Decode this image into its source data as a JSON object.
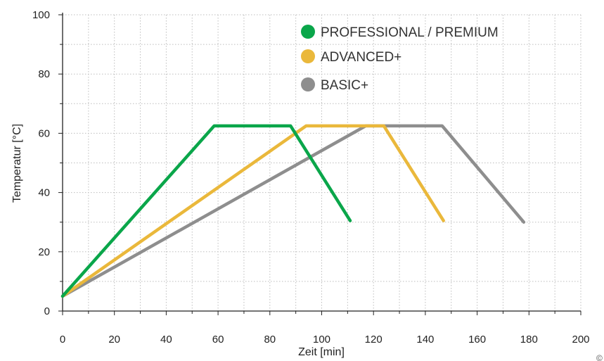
{
  "chart_data": {
    "type": "line",
    "xlabel": "Zeit [min]",
    "ylabel": "Temperatur [°C]",
    "xlim": [
      0,
      200
    ],
    "ylim": [
      0,
      100
    ],
    "x_ticks": [
      "0",
      "20",
      "40",
      "60",
      "80",
      "100",
      "120",
      "140",
      "160",
      "180",
      "200"
    ],
    "y_ticks": [
      "0",
      "20",
      "40",
      "60",
      "80",
      "100"
    ],
    "grid": true,
    "legend_position": "top-right",
    "series": [
      {
        "name": "PROFESSIONAL / PREMIUM",
        "color": "#0aa64a",
        "points": [
          [
            0,
            5
          ],
          [
            58.5,
            62.5
          ],
          [
            88,
            62.5
          ],
          [
            111,
            30.5
          ]
        ]
      },
      {
        "name": "ADVANCED+",
        "color": "#eab83b",
        "points": [
          [
            0,
            5
          ],
          [
            94,
            62.5
          ],
          [
            124,
            62.5
          ],
          [
            147,
            30.5
          ]
        ]
      },
      {
        "name": "BASIC+",
        "color": "#8e8e8e",
        "points": [
          [
            0,
            5
          ],
          [
            117,
            62.5
          ],
          [
            146.5,
            62.5
          ],
          [
            178,
            30
          ]
        ]
      }
    ]
  }
}
